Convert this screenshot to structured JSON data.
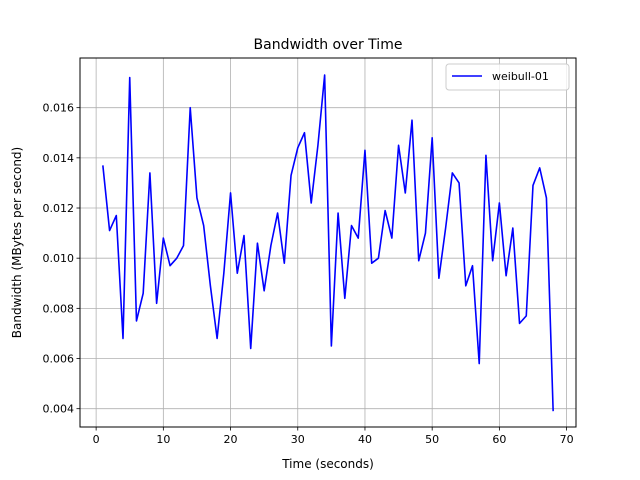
{
  "chart_data": {
    "type": "line",
    "title": "Bandwidth over Time",
    "xlabel": "Time (seconds)",
    "ylabel": "Bandwidth (MBytes per second)",
    "xlim": [
      -2.4,
      71.4
    ],
    "ylim": [
      0.00327,
      0.01798
    ],
    "xticks": [
      0,
      10,
      20,
      30,
      40,
      50,
      60,
      70
    ],
    "yticks": [
      0.004,
      0.006,
      0.008,
      0.01,
      0.012,
      0.014,
      0.016
    ],
    "xtick_labels": [
      "0",
      "10",
      "20",
      "30",
      "40",
      "50",
      "60",
      "70"
    ],
    "ytick_labels": [
      "0.004",
      "0.006",
      "0.008",
      "0.010",
      "0.012",
      "0.014",
      "0.016"
    ],
    "grid": true,
    "legend_position": "top-right",
    "series": [
      {
        "name": "weibull-01",
        "color": "#0000ff",
        "x": [
          1,
          2,
          3,
          4,
          5,
          6,
          7,
          8,
          9,
          10,
          11,
          12,
          13,
          14,
          15,
          16,
          17,
          18,
          19,
          20,
          21,
          22,
          23,
          24,
          25,
          26,
          27,
          28,
          29,
          30,
          31,
          32,
          33,
          34,
          35,
          36,
          37,
          38,
          39,
          40,
          41,
          42,
          43,
          44,
          45,
          46,
          47,
          48,
          49,
          50,
          51,
          52,
          53,
          54,
          55,
          56,
          57,
          58,
          59,
          60,
          61,
          62,
          63,
          64,
          65,
          66,
          67,
          68
        ],
        "y": [
          0.0137,
          0.0111,
          0.0117,
          0.0068,
          0.0172,
          0.0075,
          0.0086,
          0.0134,
          0.0082,
          0.0108,
          0.0097,
          0.01,
          0.0105,
          0.016,
          0.0124,
          0.0113,
          0.0089,
          0.0068,
          0.0094,
          0.0126,
          0.0094,
          0.0109,
          0.0064,
          0.0106,
          0.0087,
          0.0105,
          0.0118,
          0.0098,
          0.0133,
          0.0144,
          0.015,
          0.0122,
          0.0145,
          0.0173,
          0.0065,
          0.0118,
          0.0084,
          0.0113,
          0.0108,
          0.0143,
          0.0098,
          0.01,
          0.0119,
          0.0108,
          0.0145,
          0.0126,
          0.0155,
          0.0099,
          0.011,
          0.0148,
          0.0092,
          0.0112,
          0.0134,
          0.013,
          0.0089,
          0.0097,
          0.0058,
          0.0141,
          0.0099,
          0.0122,
          0.0093,
          0.0112,
          0.0074,
          0.0077,
          0.0129,
          0.0136,
          0.0124,
          0.0039
        ]
      }
    ]
  }
}
